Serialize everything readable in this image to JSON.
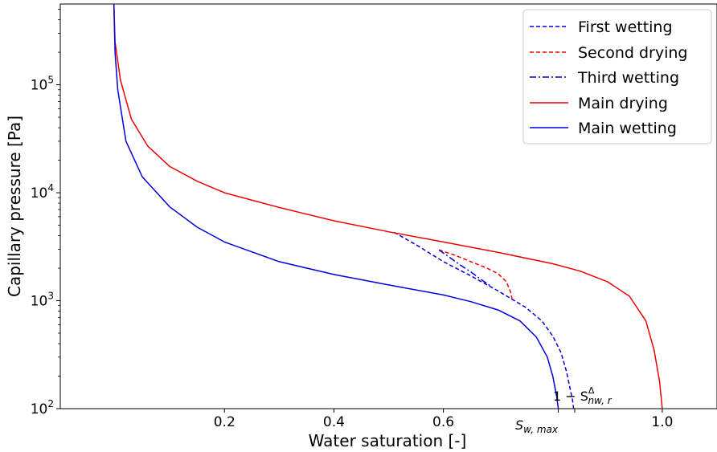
{
  "chart_data": {
    "type": "line",
    "xlabel": "Water saturation [-]",
    "ylabel": "Capillary pressure [Pa]",
    "xlim": [
      -0.1,
      1.1
    ],
    "ylim": [
      100,
      560000
    ],
    "yscale": "log",
    "x_ticks": [
      {
        "value": 0.2,
        "label": "0.2"
      },
      {
        "value": 0.4,
        "label": "0.4"
      },
      {
        "value": 0.6,
        "label": "0.6"
      },
      {
        "value": 1.0,
        "label": "1.0"
      }
    ],
    "y_ticks": [
      {
        "value": 100,
        "base": "10",
        "exp": "2"
      },
      {
        "value": 1000,
        "base": "10",
        "exp": "3"
      },
      {
        "value": 10000,
        "base": "10",
        "exp": "4"
      },
      {
        "value": 100000,
        "base": "10",
        "exp": "5"
      }
    ],
    "grid": false,
    "legend": "top-right",
    "annotations": {
      "sw_max": {
        "x": 0.81,
        "main": "S",
        "sub": "w, max"
      },
      "snwr": {
        "x": 0.84,
        "prefix": "1 − S",
        "sup": "Δ",
        "sub": "nw, r"
      }
    },
    "series": [
      {
        "name": "First wetting",
        "color": "#0000dd",
        "style": "dashed",
        "points": [
          [
            0.51,
            4300
          ],
          [
            0.55,
            3300
          ],
          [
            0.6,
            2300
          ],
          [
            0.65,
            1700
          ],
          [
            0.7,
            1230
          ],
          [
            0.75,
            870
          ],
          [
            0.78,
            650
          ],
          [
            0.8,
            470
          ],
          [
            0.815,
            330
          ],
          [
            0.825,
            220
          ],
          [
            0.832,
            150
          ],
          [
            0.836,
            120
          ],
          [
            0.838,
            100
          ]
        ]
      },
      {
        "name": "Second drying",
        "color": "#ee0000",
        "style": "dashed",
        "points": [
          [
            0.592,
            2950
          ],
          [
            0.62,
            2650
          ],
          [
            0.65,
            2300
          ],
          [
            0.68,
            2000
          ],
          [
            0.7,
            1780
          ],
          [
            0.715,
            1500
          ],
          [
            0.723,
            1200
          ],
          [
            0.726,
            1000
          ]
        ]
      },
      {
        "name": "Third wetting",
        "color": "#0000dd",
        "style": "dashdot",
        "points": [
          [
            0.592,
            2950
          ],
          [
            0.61,
            2550
          ],
          [
            0.63,
            2150
          ],
          [
            0.65,
            1850
          ],
          [
            0.67,
            1560
          ],
          [
            0.688,
            1350
          ]
        ]
      },
      {
        "name": "Main drying",
        "color": "#ee0000",
        "style": "solid",
        "points": [
          [
            -0.002,
            560000
          ],
          [
            0.0,
            250000
          ],
          [
            0.01,
            110000
          ],
          [
            0.03,
            48000
          ],
          [
            0.06,
            27000
          ],
          [
            0.1,
            17500
          ],
          [
            0.15,
            12800
          ],
          [
            0.2,
            10000
          ],
          [
            0.3,
            7300
          ],
          [
            0.4,
            5500
          ],
          [
            0.5,
            4350
          ],
          [
            0.6,
            3500
          ],
          [
            0.7,
            2800
          ],
          [
            0.8,
            2200
          ],
          [
            0.85,
            1880
          ],
          [
            0.9,
            1500
          ],
          [
            0.94,
            1100
          ],
          [
            0.97,
            650
          ],
          [
            0.985,
            350
          ],
          [
            0.995,
            180
          ],
          [
            1.0,
            100
          ]
        ]
      },
      {
        "name": "Main wetting",
        "color": "#0000dd",
        "style": "solid",
        "points": [
          [
            -0.002,
            560000
          ],
          [
            0.0,
            200000
          ],
          [
            0.005,
            90000
          ],
          [
            0.02,
            30000
          ],
          [
            0.05,
            14000
          ],
          [
            0.1,
            7400
          ],
          [
            0.15,
            4800
          ],
          [
            0.2,
            3500
          ],
          [
            0.3,
            2300
          ],
          [
            0.4,
            1750
          ],
          [
            0.5,
            1400
          ],
          [
            0.6,
            1130
          ],
          [
            0.65,
            980
          ],
          [
            0.7,
            820
          ],
          [
            0.74,
            650
          ],
          [
            0.77,
            460
          ],
          [
            0.79,
            300
          ],
          [
            0.8,
            200
          ],
          [
            0.807,
            130
          ],
          [
            0.81,
            100
          ]
        ]
      }
    ]
  }
}
